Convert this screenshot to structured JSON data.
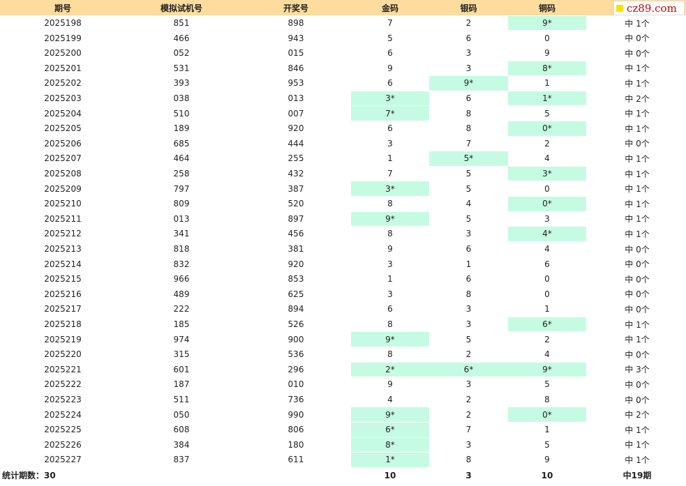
{
  "header": {
    "columns": [
      "期号",
      "模拟试机号",
      "开奖号",
      "金码",
      "银码",
      "铜码"
    ],
    "watermark": "cz89.com"
  },
  "table": {
    "rows": [
      [
        "2025198",
        "851",
        "898",
        "7",
        "2",
        "9*",
        "中 1个"
      ],
      [
        "2025199",
        "466",
        "943",
        "5",
        "6",
        "0",
        "中 0个"
      ],
      [
        "2025200",
        "052",
        "015",
        "6",
        "3",
        "9",
        "中 0个"
      ],
      [
        "2025201",
        "531",
        "846",
        "9",
        "3",
        "8*",
        "中 1个"
      ],
      [
        "2025202",
        "393",
        "953",
        "6",
        "9*",
        "1",
        "中 1个"
      ],
      [
        "2025203",
        "038",
        "013",
        "3*",
        "6",
        "1*",
        "中 2个"
      ],
      [
        "2025204",
        "510",
        "007",
        "7*",
        "8",
        "5",
        "中 1个"
      ],
      [
        "2025205",
        "189",
        "920",
        "6",
        "8",
        "0*",
        "中 1个"
      ],
      [
        "2025206",
        "685",
        "444",
        "3",
        "7",
        "2",
        "中 0个"
      ],
      [
        "2025207",
        "464",
        "255",
        "1",
        "5*",
        "4",
        "中 1个"
      ],
      [
        "2025208",
        "258",
        "432",
        "7",
        "5",
        "3*",
        "中 1个"
      ],
      [
        "2025209",
        "797",
        "387",
        "3*",
        "5",
        "0",
        "中 1个"
      ],
      [
        "2025210",
        "809",
        "520",
        "8",
        "4",
        "0*",
        "中 1个"
      ],
      [
        "2025211",
        "013",
        "897",
        "9*",
        "5",
        "3",
        "中 1个"
      ],
      [
        "2025212",
        "341",
        "456",
        "8",
        "3",
        "4*",
        "中 1个"
      ],
      [
        "2025213",
        "818",
        "381",
        "9",
        "6",
        "4",
        "中 0个"
      ],
      [
        "2025214",
        "832",
        "920",
        "3",
        "1",
        "6",
        "中 0个"
      ],
      [
        "2025215",
        "966",
        "853",
        "1",
        "6",
        "0",
        "中 0个"
      ],
      [
        "2025216",
        "489",
        "625",
        "3",
        "8",
        "0",
        "中 0个"
      ],
      [
        "2025217",
        "222",
        "894",
        "6",
        "3",
        "1",
        "中 0个"
      ],
      [
        "2025218",
        "185",
        "526",
        "8",
        "3",
        "6*",
        "中 1个"
      ],
      [
        "2025219",
        "974",
        "900",
        "9*",
        "5",
        "2",
        "中 1个"
      ],
      [
        "2025220",
        "315",
        "536",
        "8",
        "2",
        "4",
        "中 0个"
      ],
      [
        "2025221",
        "601",
        "296",
        "2*",
        "6*",
        "9*",
        "中 3个"
      ],
      [
        "2025222",
        "187",
        "010",
        "9",
        "3",
        "5",
        "中 0个"
      ],
      [
        "2025223",
        "511",
        "736",
        "4",
        "2",
        "8",
        "中 0个"
      ],
      [
        "2025224",
        "050",
        "990",
        "9*",
        "2",
        "0*",
        "中 2个"
      ],
      [
        "2025225",
        "608",
        "806",
        "6*",
        "7",
        "1",
        "中 1个"
      ],
      [
        "2025226",
        "384",
        "180",
        "8*",
        "3",
        "5",
        "中 1个"
      ],
      [
        "2025227",
        "837",
        "611",
        "1*",
        "8",
        "9",
        "中 1个"
      ]
    ]
  },
  "footer": {
    "label": "统计期数：30",
    "totals": [
      "10",
      "3",
      "10",
      "中19期"
    ]
  }
}
